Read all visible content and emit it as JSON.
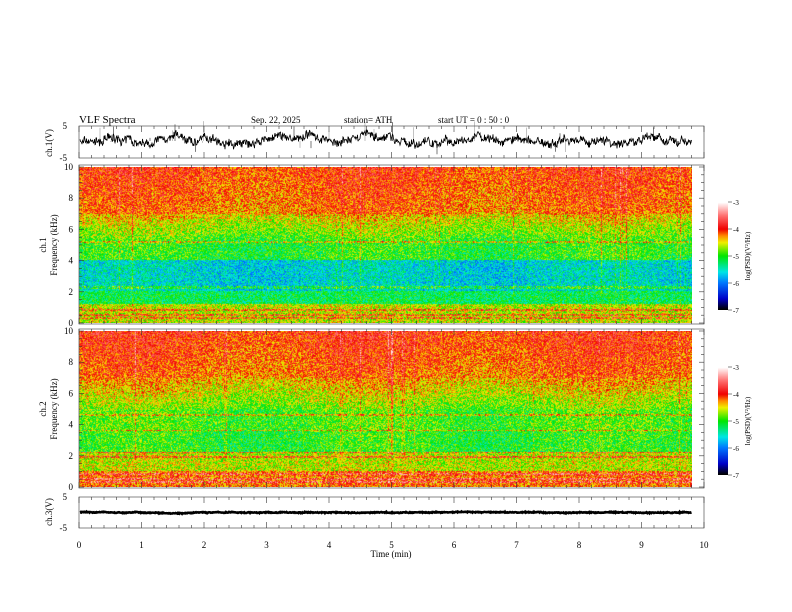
{
  "header": {
    "title": "VLF  Spectra",
    "date": "Sep. 22, 2025",
    "station": "station= ATH",
    "start": "start  UT  =    0  : 50 : 0"
  },
  "chart_data": [
    {
      "type": "line",
      "name": "ch1-waveform",
      "ylabel": "ch.1(V)",
      "ylim": [
        -5,
        5
      ],
      "yticks": [
        "5",
        "-5"
      ],
      "xlim": [
        0,
        10
      ],
      "data_end_min": 9.8,
      "mean_level": 0.3
    },
    {
      "type": "heatmap",
      "name": "ch1-spectrogram",
      "ylabel_channel": "ch.1",
      "ylabel": "Frequency  (kHz)",
      "ylim": [
        0,
        10
      ],
      "yticks": [
        "0",
        "2",
        "4",
        "6",
        "8",
        "10"
      ],
      "xlim": [
        0,
        10
      ],
      "colorbar": {
        "label": "log(PSD)(V²/Hz)",
        "range": [
          -7,
          -3
        ],
        "ticks": [
          "-3",
          "-4",
          "-5",
          "-6",
          "-7"
        ]
      }
    },
    {
      "type": "heatmap",
      "name": "ch2-spectrogram",
      "ylabel_channel": "ch.2",
      "ylabel": "Frequency  (kHz)",
      "ylim": [
        0,
        10
      ],
      "yticks": [
        "0",
        "2",
        "4",
        "6",
        "8",
        "10"
      ],
      "xlim": [
        0,
        10
      ],
      "colorbar": {
        "label": "log(PSD)(V²/Hz)",
        "range": [
          -7,
          -3
        ],
        "ticks": [
          "-3",
          "-4",
          "-5",
          "-6",
          "-7"
        ]
      }
    },
    {
      "type": "line",
      "name": "ch3-waveform",
      "ylabel": "ch.3(V)",
      "ylim": [
        -5,
        5
      ],
      "yticks": [
        "5",
        "-5"
      ],
      "xlim": [
        0,
        10
      ],
      "mean_level": 0.0
    }
  ],
  "xaxis": {
    "label": "Time  (min)",
    "ticks": [
      "0",
      "1",
      "2",
      "3",
      "4",
      "5",
      "6",
      "7",
      "8",
      "9",
      "10"
    ]
  }
}
